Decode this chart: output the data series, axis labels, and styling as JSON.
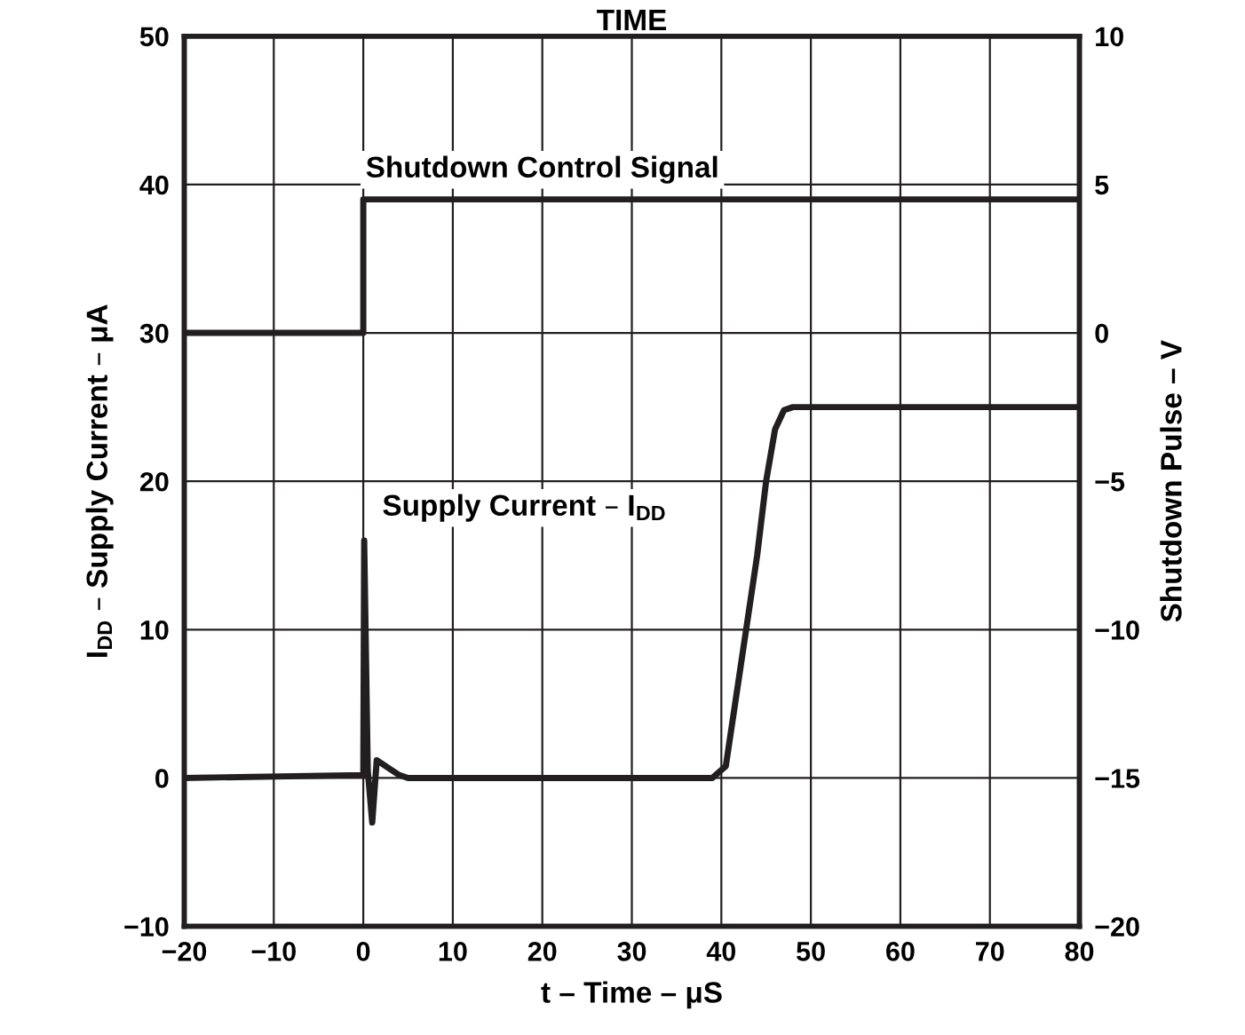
{
  "chart_data": {
    "type": "line",
    "title": "TIME",
    "xlabel": "t – Time – μS",
    "ylabel": "I$_{DD}$ – Supply Current – μA",
    "y2label": "Shutdown Pulse – V",
    "xlim": [
      -20,
      80
    ],
    "xticks": [
      -20,
      -10,
      0,
      10,
      20,
      30,
      40,
      50,
      60,
      70,
      80
    ],
    "ylim": [
      -10,
      50
    ],
    "yticks": [
      -10,
      0,
      10,
      20,
      30,
      40,
      50
    ],
    "y2lim": [
      -20,
      10
    ],
    "y2ticks": [
      -20,
      -15,
      -10,
      -5,
      0,
      5,
      10
    ],
    "grid": true,
    "legend": false,
    "marker": "none",
    "line_style": "solid",
    "series": [
      {
        "name": "Supply Current – I$_{DD}$",
        "color": "#231f20",
        "axis": "y",
        "x": [
          -20,
          0,
          0.1,
          0.5,
          1,
          1.5,
          2.5,
          4,
          5,
          39,
          40.5,
          44,
          45,
          46,
          47,
          48,
          80
        ],
        "values": [
          0,
          0.2,
          16,
          0.5,
          -3,
          1.2,
          0.8,
          0.2,
          0,
          0,
          0.8,
          15,
          20,
          23.5,
          24.8,
          25,
          25
        ]
      },
      {
        "name": "Shutdown Control Signal",
        "color": "#231f20",
        "axis": "y2",
        "type": "step",
        "x": [
          -20,
          0,
          0,
          80
        ],
        "values": [
          0,
          0,
          4.5,
          4.5
        ]
      }
    ]
  }
}
